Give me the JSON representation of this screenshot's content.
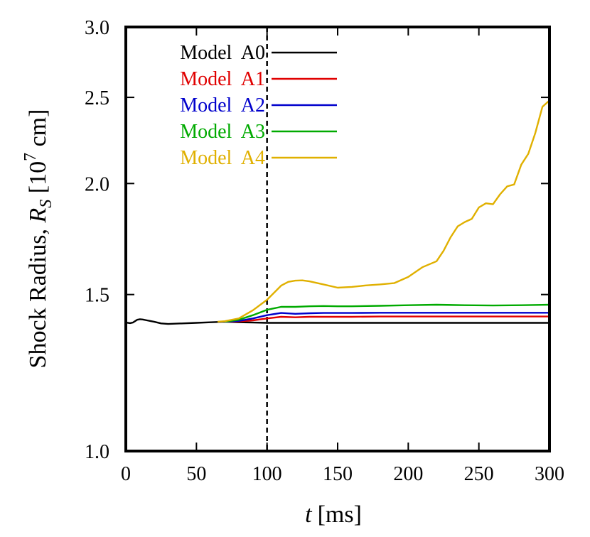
{
  "chart_data": {
    "type": "line",
    "xlabel": {
      "var": "t",
      "unit": "[ms]"
    },
    "ylabel": {
      "prefix": "Shock Radius, ",
      "var": "R",
      "sub": "S",
      "unit_pre": " [10",
      "exp": "7",
      "unit_post": " cm]"
    },
    "xlim": [
      0,
      300
    ],
    "ylim": [
      1.0,
      3.0
    ],
    "y_scale": "log",
    "x_ticks": [
      0,
      50,
      100,
      150,
      200,
      250,
      300
    ],
    "x_tick_labels": [
      "0",
      "50",
      "100",
      "150",
      "200",
      "250",
      "300"
    ],
    "y_ticks": [
      1.0,
      1.5,
      2.0,
      2.5,
      3.0
    ],
    "y_tick_labels": [
      "1.0",
      "1.5",
      "2.0",
      "2.5",
      "3.0"
    ],
    "vline": {
      "x": 100,
      "style": "dashed"
    },
    "legend_position": "top-left",
    "series": [
      {
        "name": "Model  A0",
        "color": "#000000",
        "x": [
          0,
          3,
          5,
          8,
          10,
          12,
          15,
          18,
          20,
          25,
          30,
          40,
          50,
          60,
          70,
          80,
          90,
          100,
          110,
          120,
          140,
          160,
          180,
          200,
          220,
          240,
          260,
          280,
          300
        ],
        "y": [
          1.395,
          1.393,
          1.395,
          1.405,
          1.407,
          1.406,
          1.403,
          1.4,
          1.398,
          1.392,
          1.39,
          1.392,
          1.394,
          1.396,
          1.398,
          1.396,
          1.395,
          1.394,
          1.394,
          1.394,
          1.394,
          1.394,
          1.394,
          1.394,
          1.394,
          1.394,
          1.394,
          1.394,
          1.394
        ]
      },
      {
        "name": "Model  A1",
        "color": "#e00000",
        "x": [
          70,
          80,
          90,
          100,
          110,
          120,
          130,
          140,
          160,
          180,
          200,
          220,
          240,
          260,
          280,
          300
        ],
        "y": [
          1.398,
          1.399,
          1.403,
          1.41,
          1.416,
          1.414,
          1.416,
          1.416,
          1.416,
          1.417,
          1.417,
          1.417,
          1.417,
          1.417,
          1.417,
          1.417
        ]
      },
      {
        "name": "Model  A2",
        "color": "#0000cc",
        "x": [
          70,
          80,
          90,
          100,
          110,
          120,
          130,
          140,
          160,
          180,
          200,
          220,
          240,
          260,
          280,
          300
        ],
        "y": [
          1.398,
          1.401,
          1.41,
          1.422,
          1.43,
          1.427,
          1.429,
          1.43,
          1.43,
          1.431,
          1.431,
          1.431,
          1.431,
          1.431,
          1.431,
          1.431
        ]
      },
      {
        "name": "Model  A3",
        "color": "#00aa00",
        "x": [
          70,
          80,
          90,
          100,
          110,
          120,
          130,
          140,
          150,
          160,
          180,
          200,
          220,
          240,
          260,
          280,
          300
        ],
        "y": [
          1.398,
          1.405,
          1.422,
          1.442,
          1.453,
          1.453,
          1.455,
          1.456,
          1.455,
          1.455,
          1.457,
          1.459,
          1.461,
          1.459,
          1.458,
          1.459,
          1.461
        ]
      },
      {
        "name": "Model  A4",
        "color": "#e0b000",
        "x": [
          65,
          70,
          80,
          90,
          100,
          110,
          115,
          120,
          125,
          130,
          140,
          150,
          160,
          170,
          180,
          190,
          200,
          210,
          220,
          225,
          230,
          235,
          240,
          245,
          250,
          255,
          260,
          265,
          270,
          275,
          280,
          285,
          290,
          295,
          300
        ],
        "y": [
          1.398,
          1.4,
          1.41,
          1.44,
          1.48,
          1.535,
          1.55,
          1.555,
          1.556,
          1.552,
          1.54,
          1.527,
          1.53,
          1.536,
          1.54,
          1.545,
          1.57,
          1.61,
          1.635,
          1.68,
          1.74,
          1.79,
          1.81,
          1.825,
          1.88,
          1.9,
          1.895,
          1.945,
          1.985,
          1.995,
          2.1,
          2.16,
          2.28,
          2.44,
          2.48
        ]
      }
    ]
  }
}
